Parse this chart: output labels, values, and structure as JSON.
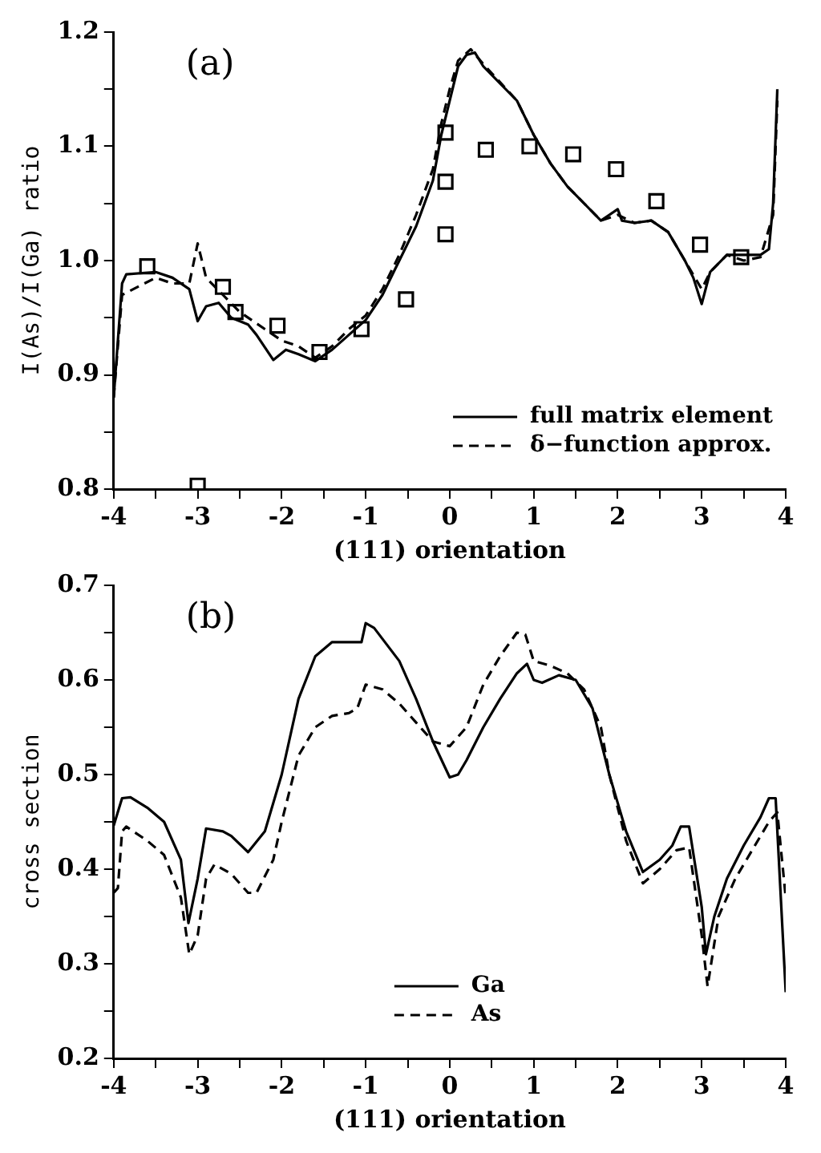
{
  "chart_data": [
    {
      "type": "line",
      "title": "(a)",
      "xlabel": "(111) orientation",
      "ylabel": "I(As)/I(Ga) ratio",
      "xlim": [
        -4,
        4
      ],
      "ylim": [
        0.8,
        1.2
      ],
      "xticks": [
        -4,
        {
          "value": -3.5,
          "label": null
        },
        -3,
        {
          "value": -2.5,
          "label": null
        },
        -2,
        {
          "value": -1.5,
          "label": null
        },
        -1,
        {
          "value": -0.5,
          "label": null
        },
        0,
        {
          "value": 0.5,
          "label": null
        },
        1,
        {
          "value": 1.5,
          "label": null
        },
        2,
        {
          "value": 2.5,
          "label": null
        },
        3,
        {
          "value": 3.5,
          "label": null
        },
        4
      ],
      "yticks": [
        0.8,
        {
          "value": 0.85,
          "label": null
        },
        0.9,
        {
          "value": 0.95,
          "label": null
        },
        {
          "value": 1,
          "label": "1.0"
        },
        {
          "value": 1.05,
          "label": null
        },
        1.1,
        {
          "value": 1.15,
          "label": null
        },
        1.2
      ],
      "grid": false,
      "legend": "bottom right",
      "series": [
        {
          "name": "full matrix element",
          "color": "#000000",
          "marker": "none",
          "line_style": "solid",
          "x": [
            -4,
            -3.9,
            -3.85,
            -3.5,
            -3.3,
            -3.1,
            -3.0,
            -2.9,
            -2.75,
            -2.6,
            -2.4,
            -2.3,
            -2.1,
            -1.95,
            -1.8,
            -1.6,
            -1.4,
            -1.2,
            -1.0,
            -0.8,
            -0.6,
            -0.4,
            -0.2,
            -0.1,
            0,
            0.1,
            0.2,
            0.3,
            0.4,
            0.6,
            0.8,
            1.0,
            1.2,
            1.4,
            1.6,
            1.8,
            1.9,
            2.0,
            2.05,
            2.2,
            2.4,
            2.6,
            2.8,
            2.9,
            3.0,
            3.1,
            3.3,
            3.5,
            3.7,
            3.8,
            3.85,
            3.9
          ],
          "values": [
            0.88,
            0.98,
            0.988,
            0.99,
            0.985,
            0.975,
            0.947,
            0.96,
            0.963,
            0.95,
            0.944,
            0.935,
            0.913,
            0.922,
            0.918,
            0.912,
            0.922,
            0.935,
            0.948,
            0.97,
            1.0,
            1.03,
            1.07,
            1.11,
            1.14,
            1.17,
            1.18,
            1.182,
            1.17,
            1.155,
            1.14,
            1.11,
            1.085,
            1.065,
            1.05,
            1.035,
            1.04,
            1.045,
            1.035,
            1.033,
            1.035,
            1.025,
            1.0,
            0.985,
            0.962,
            0.99,
            1.005,
            1.005,
            1.005,
            1.01,
            1.05,
            1.15
          ]
        },
        {
          "name": "δ−function approx.",
          "color": "#000000",
          "marker": "none",
          "line_style": "dashed",
          "x": [
            -4,
            -3.9,
            -3.5,
            -3.3,
            -3.1,
            -3.0,
            -2.9,
            -2.7,
            -2.5,
            -2.2,
            -2.0,
            -1.8,
            -1.6,
            -1.4,
            -1.2,
            -1.0,
            -0.8,
            -0.6,
            -0.4,
            -0.2,
            -0.1,
            0,
            0.1,
            0.25,
            0.4,
            0.6,
            0.8,
            1.0,
            1.2,
            1.4,
            1.6,
            1.8,
            2.0,
            2.2,
            2.4,
            2.6,
            2.8,
            3.0,
            3.1,
            3.3,
            3.5,
            3.7,
            3.85,
            3.9
          ],
          "values": [
            0.88,
            0.97,
            0.985,
            0.98,
            0.98,
            1.015,
            0.985,
            0.97,
            0.955,
            0.94,
            0.93,
            0.925,
            0.915,
            0.925,
            0.94,
            0.952,
            0.975,
            1.005,
            1.04,
            1.08,
            1.12,
            1.15,
            1.175,
            1.185,
            1.172,
            1.156,
            1.14,
            1.11,
            1.085,
            1.065,
            1.05,
            1.035,
            1.04,
            1.033,
            1.035,
            1.025,
            1.0,
            0.975,
            0.99,
            1.005,
            1.0,
            1.003,
            1.04,
            1.14
          ]
        },
        {
          "type": "scatter",
          "color": "#000000",
          "marker": "square",
          "x": [
            -3.6,
            -3.0,
            -2.7,
            -2.55,
            -2.05,
            -1.55,
            -1.05,
            -0.52,
            -0.05,
            -0.05,
            -0.05,
            0.43,
            0.95,
            1.47,
            1.98,
            2.46,
            2.98,
            3.47
          ],
          "values": [
            0.995,
            0.803,
            0.977,
            0.955,
            0.943,
            0.92,
            0.94,
            0.966,
            1.112,
            1.069,
            1.023,
            1.097,
            1.1,
            1.093,
            1.08,
            1.052,
            1.014,
            1.003
          ]
        }
      ]
    },
    {
      "type": "line",
      "title": "(b)",
      "xlabel": "(111) orientation",
      "ylabel": "cross section",
      "xlim": [
        -4,
        4
      ],
      "ylim": [
        0.2,
        0.7
      ],
      "xticks": [
        -4,
        {
          "value": -3.5,
          "label": null
        },
        -3,
        {
          "value": -2.5,
          "label": null
        },
        -2,
        {
          "value": -1.5,
          "label": null
        },
        -1,
        {
          "value": -0.5,
          "label": null
        },
        0,
        {
          "value": 0.5,
          "label": null
        },
        1,
        {
          "value": 1.5,
          "label": null
        },
        2,
        {
          "value": 2.5,
          "label": null
        },
        3,
        {
          "value": 3.5,
          "label": null
        },
        4
      ],
      "yticks": [
        0.2,
        {
          "value": 0.25,
          "label": null
        },
        0.3,
        {
          "value": 0.35,
          "label": null
        },
        0.4,
        {
          "value": 0.45,
          "label": null
        },
        0.5,
        {
          "value": 0.55,
          "label": null
        },
        0.6,
        {
          "value": 0.65,
          "label": null
        },
        0.7
      ],
      "grid": false,
      "legend": "bottom",
      "series": [
        {
          "name": "Ga",
          "color": "#000000",
          "marker": "none",
          "line_style": "solid",
          "x": [
            -4,
            -3.9,
            -3.8,
            -3.6,
            -3.4,
            -3.2,
            -3.11,
            -3.0,
            -2.9,
            -2.7,
            -2.6,
            -2.4,
            -2.2,
            -2.0,
            -1.8,
            -1.6,
            -1.4,
            -1.2,
            -1.05,
            -1.0,
            -0.9,
            -0.6,
            -0.4,
            -0.2,
            0,
            0.1,
            0.2,
            0.4,
            0.6,
            0.8,
            0.92,
            1.0,
            1.1,
            1.3,
            1.5,
            1.7,
            1.9,
            2.0,
            2.1,
            2.3,
            2.5,
            2.65,
            2.75,
            2.85,
            3.0,
            3.05,
            3.15,
            3.3,
            3.5,
            3.7,
            3.8,
            3.88,
            4.0
          ],
          "values": [
            0.446,
            0.475,
            0.476,
            0.465,
            0.45,
            0.41,
            0.343,
            0.39,
            0.443,
            0.44,
            0.435,
            0.418,
            0.44,
            0.5,
            0.58,
            0.625,
            0.64,
            0.64,
            0.64,
            0.66,
            0.655,
            0.62,
            0.58,
            0.535,
            0.497,
            0.5,
            0.515,
            0.55,
            0.58,
            0.607,
            0.617,
            0.6,
            0.597,
            0.605,
            0.6,
            0.57,
            0.5,
            0.47,
            0.44,
            0.397,
            0.41,
            0.425,
            0.445,
            0.445,
            0.36,
            0.31,
            0.35,
            0.39,
            0.425,
            0.455,
            0.475,
            0.475,
            0.27
          ]
        },
        {
          "name": "As",
          "color": "#000000",
          "marker": "none",
          "line_style": "dashed",
          "x": [
            -4,
            -3.95,
            -3.9,
            -3.85,
            -3.6,
            -3.4,
            -3.2,
            -3.1,
            -3.0,
            -2.9,
            -2.8,
            -2.6,
            -2.4,
            -2.3,
            -2.1,
            -2.0,
            -1.8,
            -1.6,
            -1.4,
            -1.2,
            -1.1,
            -1.0,
            -0.8,
            -0.6,
            -0.4,
            -0.2,
            0,
            0.2,
            0.4,
            0.6,
            0.8,
            0.9,
            1.0,
            1.2,
            1.4,
            1.6,
            1.8,
            1.9,
            2.1,
            2.3,
            2.5,
            2.7,
            2.85,
            3.0,
            3.07,
            3.2,
            3.4,
            3.6,
            3.8,
            3.9,
            4.0
          ],
          "values": [
            0.375,
            0.38,
            0.44,
            0.445,
            0.43,
            0.415,
            0.37,
            0.31,
            0.33,
            0.39,
            0.405,
            0.395,
            0.375,
            0.375,
            0.41,
            0.45,
            0.52,
            0.55,
            0.562,
            0.565,
            0.57,
            0.595,
            0.59,
            0.575,
            0.555,
            0.535,
            0.53,
            0.55,
            0.595,
            0.625,
            0.65,
            0.648,
            0.62,
            0.615,
            0.607,
            0.59,
            0.55,
            0.5,
            0.43,
            0.385,
            0.4,
            0.42,
            0.423,
            0.33,
            0.276,
            0.35,
            0.39,
            0.42,
            0.45,
            0.46,
            0.37
          ]
        }
      ]
    }
  ]
}
